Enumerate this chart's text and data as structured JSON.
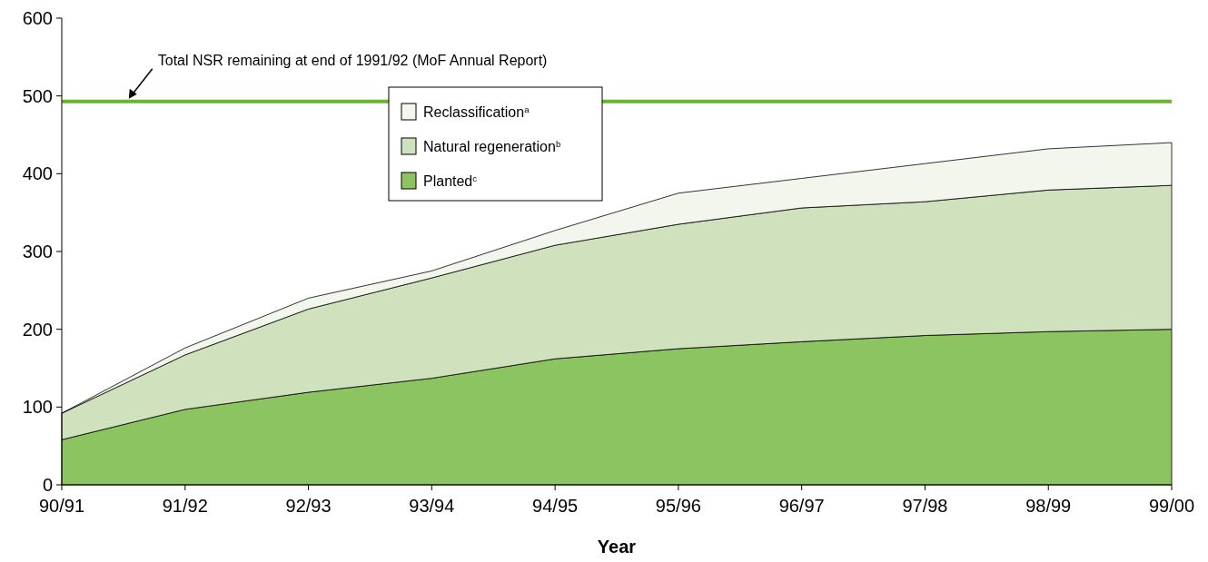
{
  "chart_data": {
    "type": "area",
    "stacked": true,
    "xlabel": "Year",
    "categories": [
      "90/91",
      "91/92",
      "92/93",
      "93/94",
      "94/95",
      "95/96",
      "96/97",
      "97/98",
      "98/99",
      "99/00"
    ],
    "series": [
      {
        "name": "Planted$^{c}$",
        "color": "#8dc462",
        "values": [
          58,
          97,
          119,
          137,
          162,
          175,
          184,
          192,
          197,
          200
        ]
      },
      {
        "name": "Natural regeneration$^{b}$",
        "color": "#d0e2bd",
        "values": [
          34,
          70,
          107,
          129,
          146,
          160,
          172,
          172,
          182,
          185
        ]
      },
      {
        "name": "Reclassification$^{a}$",
        "color": "#f2f6ec",
        "values": [
          0,
          9,
          14,
          9,
          19,
          40,
          38,
          49,
          53,
          55
        ]
      }
    ],
    "ylim": [
      0,
      600
    ],
    "yticks": [
      0,
      100,
      200,
      300,
      400,
      500,
      600
    ],
    "grid": false,
    "legend": "top",
    "ref_lines": [
      {
        "axis": "y",
        "value": 493,
        "label": "Total NSR remaining at end of 1991/92 (MoF Annual Report)",
        "color": "#6ab42d"
      }
    ]
  }
}
